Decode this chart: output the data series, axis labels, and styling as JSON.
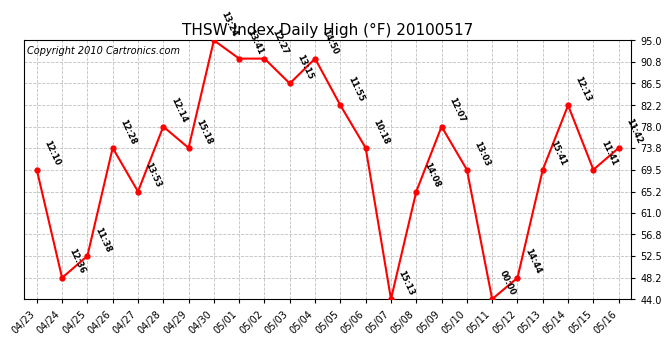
{
  "title": "THSW Index Daily High (°F) 20100517",
  "copyright": "Copyright 2010 Cartronics.com",
  "x_labels": [
    "04/23",
    "04/24",
    "04/25",
    "04/26",
    "04/27",
    "04/28",
    "04/29",
    "04/30",
    "05/01",
    "05/02",
    "05/03",
    "05/04",
    "05/05",
    "05/06",
    "05/07",
    "05/08",
    "05/09",
    "05/10",
    "05/11",
    "05/12",
    "05/13",
    "05/14",
    "05/15",
    "05/16"
  ],
  "y_values": [
    69.5,
    48.2,
    52.5,
    73.8,
    65.2,
    78.0,
    73.8,
    95.0,
    91.4,
    91.4,
    86.5,
    91.4,
    82.2,
    73.8,
    44.0,
    65.2,
    78.0,
    69.5,
    44.0,
    48.2,
    69.5,
    82.2,
    69.5,
    73.8
  ],
  "time_labels": [
    "12:10",
    "12:36",
    "11:38",
    "12:28",
    "13:53",
    "12:14",
    "15:18",
    "13:24",
    "13:41",
    "12:27",
    "13:15",
    "14:50",
    "11:55",
    "10:18",
    "15:13",
    "14:08",
    "12:07",
    "13:03",
    "00:00",
    "14:44",
    "15:41",
    "12:13",
    "11:41",
    "11:42"
  ],
  "ylim": [
    44.0,
    95.0
  ],
  "yticks": [
    44.0,
    48.2,
    52.5,
    56.8,
    61.0,
    65.2,
    69.5,
    73.8,
    78.0,
    82.2,
    86.5,
    90.8,
    95.0
  ],
  "line_color": "#ff0000",
  "marker_color": "#ff0000",
  "bg_color": "#ffffff",
  "grid_color": "#c0c0c0",
  "title_fontsize": 11,
  "copyright_fontsize": 7,
  "label_fontsize": 6,
  "tick_fontsize": 7
}
